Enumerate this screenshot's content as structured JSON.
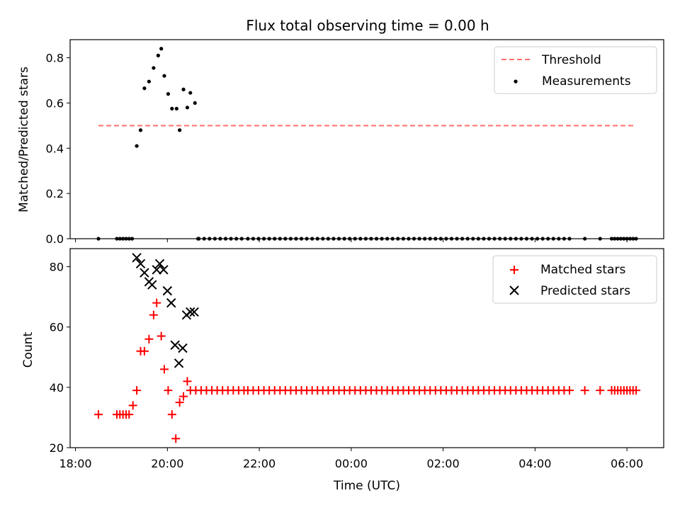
{
  "chart_data": [
    {
      "type": "scatter",
      "title": "Flux total observing time = 0.00 h",
      "xlabel": "",
      "ylabel": "Matched/Predicted stars",
      "ylim": [
        0,
        0.88
      ],
      "xlim": [
        "17:53",
        "06:48"
      ],
      "yticks": [
        "0.0",
        "0.2",
        "0.4",
        "0.6",
        "0.8"
      ],
      "legend_position": "top-right",
      "threshold": {
        "name": "Threshold",
        "value": 0.5,
        "x_range": [
          "18:30",
          "06:10"
        ],
        "color": "#ff7070",
        "style": "dashed"
      },
      "series": [
        {
          "name": "Measurements",
          "color": "#000000",
          "marker": "dot",
          "points": [
            [
              "19:20",
              0.41
            ],
            [
              "19:25",
              0.48
            ],
            [
              "19:30",
              0.665
            ],
            [
              "19:36",
              0.695
            ],
            [
              "19:42",
              0.755
            ],
            [
              "19:48",
              0.81
            ],
            [
              "19:52",
              0.84
            ],
            [
              "19:56",
              0.72
            ],
            [
              "20:01",
              0.64
            ],
            [
              "20:06",
              0.575
            ],
            [
              "20:12",
              0.575
            ],
            [
              "20:16",
              0.48
            ],
            [
              "20:21",
              0.66
            ],
            [
              "20:26",
              0.58
            ],
            [
              "20:30",
              0.645
            ],
            [
              "20:36",
              0.6
            ]
          ],
          "zeros": {
            "explicit": [
              "18:30",
              "18:54",
              "18:58",
              "19:02",
              "19:06",
              "19:10",
              "19:14",
              "20:40"
            ],
            "ranges": [
              [
                "20:41",
                "21:40"
              ],
              [
                "21:45",
                "22:50"
              ],
              [
                "22:55",
                "23:55"
              ],
              [
                "23:58",
                "04:50"
              ]
            ],
            "extra": [
              "05:05",
              "05:25"
            ],
            "tail": [
              "05:40",
              "06:12"
            ]
          }
        }
      ]
    },
    {
      "type": "scatter",
      "title": "",
      "xlabel": "Time (UTC)",
      "ylabel": "Count",
      "ylim": [
        20,
        86
      ],
      "xlim": [
        "17:53",
        "06:48"
      ],
      "yticks": [
        "20",
        "40",
        "60",
        "80"
      ],
      "xticks": [
        "18:00",
        "20:00",
        "22:00",
        "00:00",
        "02:00",
        "04:00",
        "06:00"
      ],
      "legend_position": "top-right",
      "series": [
        {
          "name": "Matched stars",
          "color": "#ff0000",
          "marker": "plus",
          "points": [
            [
              "18:30",
              31
            ],
            [
              "18:54",
              31
            ],
            [
              "18:58",
              31
            ],
            [
              "19:02",
              31
            ],
            [
              "19:06",
              31
            ],
            [
              "19:10",
              31
            ],
            [
              "19:15",
              34
            ],
            [
              "19:20",
              39
            ],
            [
              "19:25",
              52
            ],
            [
              "19:30",
              52
            ],
            [
              "19:36",
              56
            ],
            [
              "19:42",
              64
            ],
            [
              "19:46",
              68
            ],
            [
              "19:52",
              57
            ],
            [
              "19:56",
              46
            ],
            [
              "20:01",
              39
            ],
            [
              "20:06",
              31
            ],
            [
              "20:11",
              23
            ],
            [
              "20:16",
              35
            ],
            [
              "20:21",
              37
            ],
            [
              "20:26",
              42
            ]
          ],
          "steady": {
            "value": 39,
            "ranges": [
              [
                "20:30",
                "21:40"
              ],
              [
                "21:45",
                "22:50"
              ],
              [
                "22:55",
                "23:55"
              ],
              [
                "23:58",
                "04:50"
              ]
            ],
            "extra": [
              "05:05",
              "05:25"
            ],
            "tail": [
              "05:40",
              "06:15"
            ]
          }
        },
        {
          "name": "Predicted stars",
          "color": "#000000",
          "marker": "x",
          "points": [
            [
              "19:20",
              83
            ],
            [
              "19:25",
              81
            ],
            [
              "19:30",
              78
            ],
            [
              "19:36",
              75
            ],
            [
              "19:40",
              74
            ],
            [
              "19:46",
              79
            ],
            [
              "19:50",
              81
            ],
            [
              "19:55",
              79
            ],
            [
              "20:00",
              72
            ],
            [
              "20:05",
              68
            ],
            [
              "20:10",
              54
            ],
            [
              "20:15",
              48
            ],
            [
              "20:20",
              53
            ],
            [
              "20:25",
              64
            ],
            [
              "20:30",
              65
            ],
            [
              "20:35",
              65
            ]
          ]
        }
      ]
    }
  ]
}
